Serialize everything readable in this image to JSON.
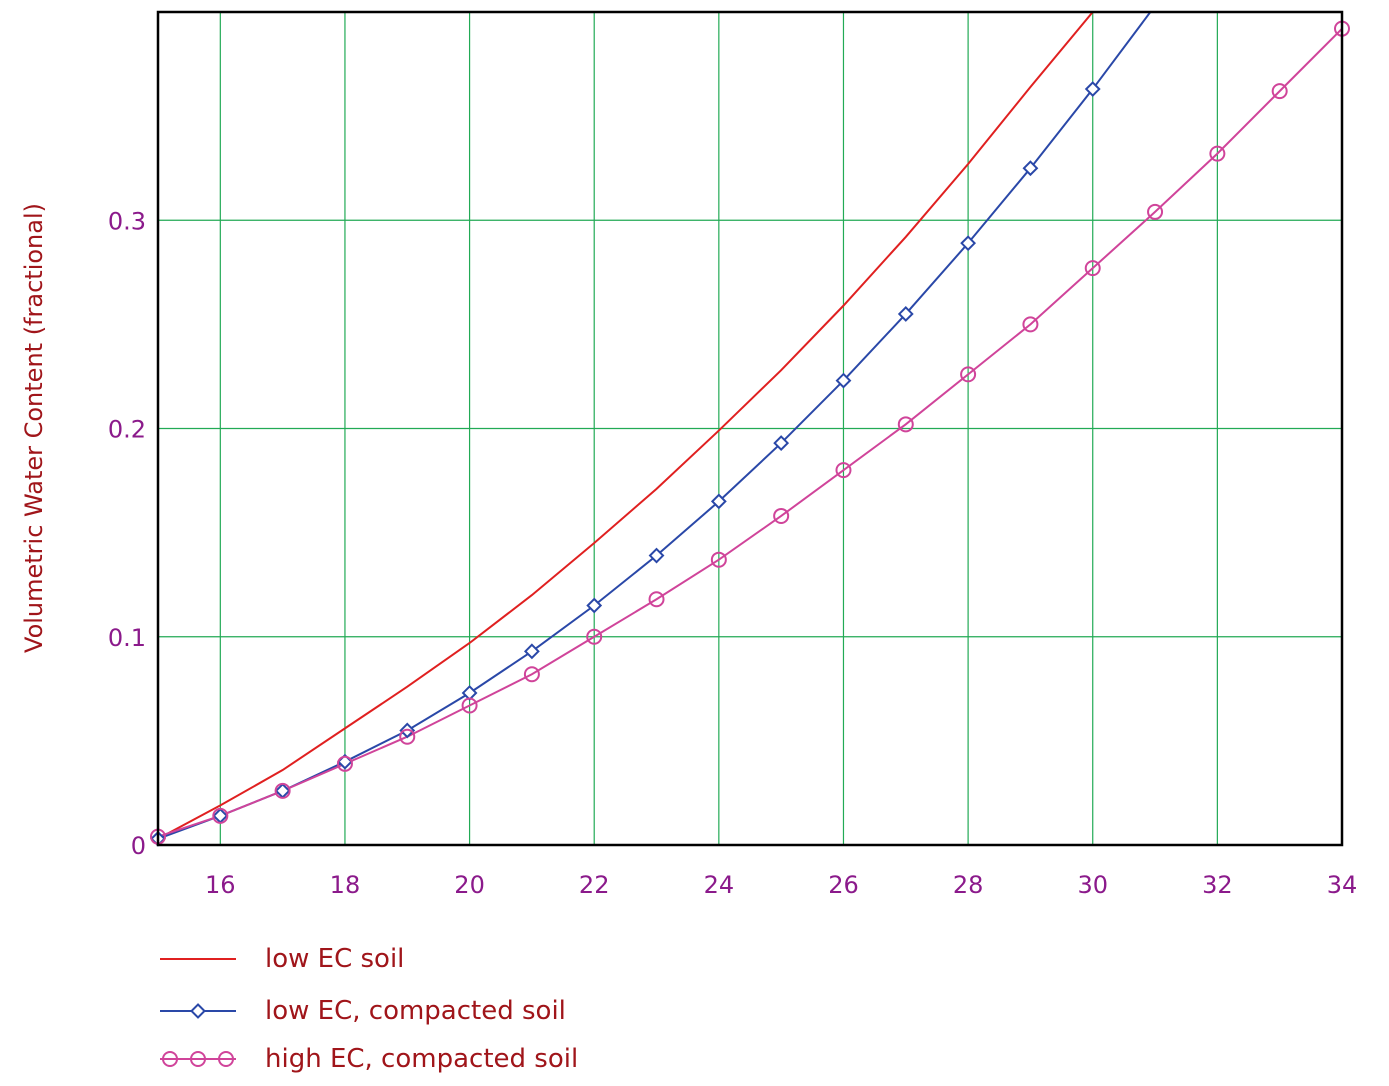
{
  "chart_data": {
    "type": "line",
    "title": "",
    "xlabel": "",
    "ylabel": "Volumetric Water Content (fractional)",
    "xlim": [
      15,
      34
    ],
    "ylim": [
      0,
      0.4
    ],
    "x_ticks": [
      {
        "value": 16,
        "label": "16"
      },
      {
        "value": 18,
        "label": "18"
      },
      {
        "value": 20,
        "label": "20"
      },
      {
        "value": 22,
        "label": "22"
      },
      {
        "value": 24,
        "label": "24"
      },
      {
        "value": 26,
        "label": "26"
      },
      {
        "value": 28,
        "label": "28"
      },
      {
        "value": 30,
        "label": "30"
      },
      {
        "value": 32,
        "label": "32"
      },
      {
        "value": 34,
        "label": "34"
      }
    ],
    "y_ticks": [
      {
        "value": 0,
        "label": "0"
      },
      {
        "value": 0.1,
        "label": "0.1"
      },
      {
        "value": 0.2,
        "label": "0.2"
      },
      {
        "value": 0.3,
        "label": "0.3"
      }
    ],
    "x_grid": [
      15,
      16,
      18,
      20,
      22,
      24,
      26,
      28,
      30,
      32,
      34
    ],
    "y_grid": [
      0.1,
      0.2,
      0.3
    ],
    "grid": true,
    "grid_color": "#22aa55",
    "legend_position": "bottom-left",
    "series": [
      {
        "name": "low EC soil",
        "color": "#e02020",
        "marker": "none",
        "x": [
          15,
          16,
          17,
          18,
          19,
          20,
          21,
          22,
          23,
          24,
          25,
          26,
          27,
          28,
          29,
          30,
          30.05
        ],
        "y": [
          0.003,
          0.019,
          0.036,
          0.056,
          0.076,
          0.097,
          0.12,
          0.145,
          0.171,
          0.199,
          0.228,
          0.259,
          0.292,
          0.327,
          0.364,
          0.4,
          0.401
        ]
      },
      {
        "name": "low EC, compacted soil",
        "color": "#2a48a8",
        "marker": "diamond",
        "x": [
          15,
          16,
          17,
          18,
          19,
          20,
          21,
          22,
          23,
          24,
          25,
          26,
          27,
          28,
          29,
          30,
          31
        ],
        "y": [
          0.003,
          0.014,
          0.026,
          0.04,
          0.055,
          0.073,
          0.093,
          0.115,
          0.139,
          0.165,
          0.193,
          0.223,
          0.255,
          0.289,
          0.325,
          0.363,
          0.403
        ]
      },
      {
        "name": "high EC, compacted soil",
        "color": "#d0449a",
        "marker": "circle",
        "x": [
          15,
          16,
          17,
          18,
          19,
          20,
          21,
          22,
          23,
          24,
          25,
          26,
          27,
          28,
          29,
          30,
          31,
          32,
          33,
          34
        ],
        "y": [
          0.004,
          0.014,
          0.026,
          0.039,
          0.052,
          0.067,
          0.082,
          0.1,
          0.118,
          0.137,
          0.158,
          0.18,
          0.202,
          0.226,
          0.25,
          0.277,
          0.304,
          0.332,
          0.362,
          0.392
        ]
      }
    ]
  }
}
